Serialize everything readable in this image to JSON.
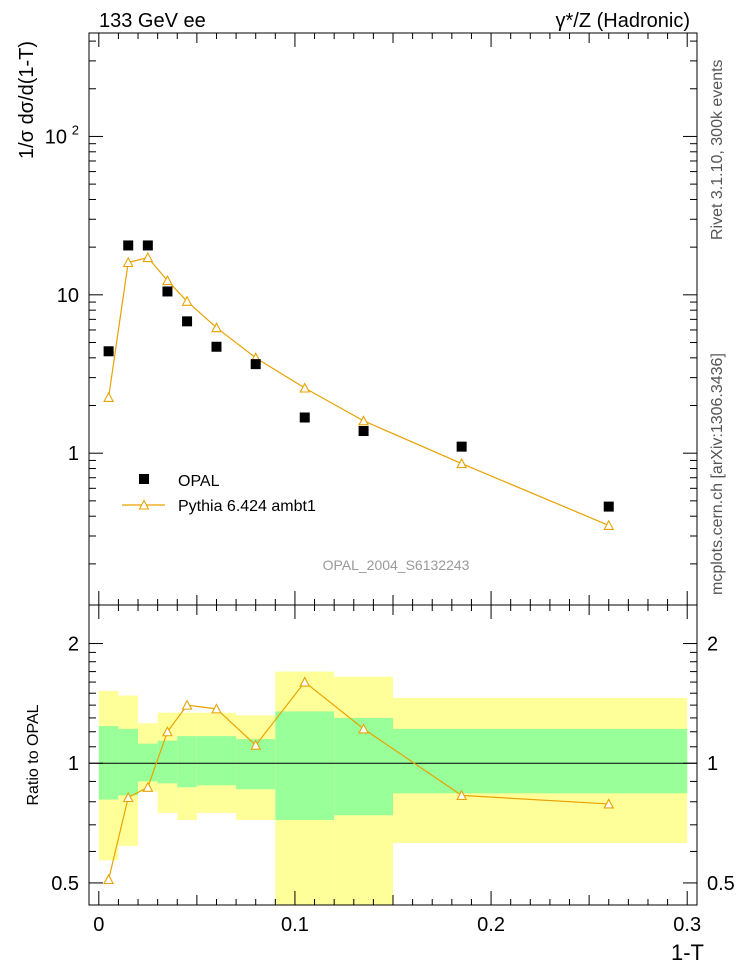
{
  "header": {
    "left_title": "133 GeV ee",
    "right_title": "γ*/Z (Hadronic)"
  },
  "side_labels": {
    "rivet": "Rivet 3.1.10,  300k events",
    "mcplots": "mcplots.cern.ch [arXiv:1306.3436]"
  },
  "analysis_id": "OPAL_2004_S6132243",
  "colors": {
    "data_marker": "#000000",
    "mc_line": "#e8a200",
    "band_inner": "#99ff99",
    "band_outer": "#ffff99",
    "ratio_ref_line": "#000000"
  },
  "chart_data": [
    {
      "type": "scatter",
      "panel": "main",
      "ylabel": "1/σ dσ/d(1-T)",
      "yscale": "log",
      "ylim": [
        0.11,
        450
      ],
      "xlim": [
        -0.005,
        0.305
      ],
      "ytick_labels": [
        "1",
        "10",
        "10^2"
      ],
      "legend_position": "lower-left",
      "series": [
        {
          "name": "OPAL",
          "marker": "filled-square",
          "x": [
            0.005,
            0.015,
            0.025,
            0.035,
            0.045,
            0.06,
            0.08,
            0.105,
            0.135,
            0.185,
            0.26
          ],
          "y": [
            4.4,
            20.5,
            20.5,
            10.5,
            6.8,
            4.7,
            3.65,
            1.68,
            1.38,
            1.1,
            0.46
          ]
        },
        {
          "name": "Pythia 6.424 ambt1",
          "marker": "open-triangle",
          "line": true,
          "x": [
            0.005,
            0.015,
            0.025,
            0.035,
            0.045,
            0.06,
            0.08,
            0.105,
            0.135,
            0.185,
            0.26
          ],
          "y": [
            2.25,
            16.0,
            17.2,
            12.3,
            9.1,
            6.2,
            4.0,
            2.58,
            1.6,
            0.86,
            0.35
          ]
        }
      ]
    },
    {
      "type": "line",
      "panel": "ratio",
      "xlabel": "1-T",
      "ylabel": "Ratio to OPAL",
      "yscale": "log",
      "ylim": [
        0.44,
        2.5
      ],
      "xlim": [
        -0.005,
        0.305
      ],
      "ytick_labels": [
        "0.5",
        "1",
        "2"
      ],
      "xtick_labels": [
        "0",
        "0.1",
        "0.2",
        "0.3"
      ],
      "reference_line": 1,
      "uncertainty_bands": {
        "bin_edges": [
          0.0,
          0.01,
          0.02,
          0.03,
          0.04,
          0.05,
          0.07,
          0.09,
          0.12,
          0.15,
          0.3
        ],
        "outer_low": [
          0.57,
          0.62,
          0.85,
          0.75,
          0.72,
          0.75,
          0.72,
          0.38,
          0.38,
          0.63
        ],
        "outer_high": [
          1.52,
          1.48,
          1.26,
          1.34,
          1.34,
          1.34,
          1.32,
          1.7,
          1.65,
          1.46
        ],
        "inner_low": [
          0.81,
          0.83,
          0.9,
          0.89,
          0.87,
          0.88,
          0.86,
          0.72,
          0.74,
          0.84
        ],
        "inner_high": [
          1.24,
          1.22,
          1.12,
          1.14,
          1.17,
          1.17,
          1.15,
          1.35,
          1.3,
          1.22
        ]
      },
      "series": [
        {
          "name": "Pythia 6.424 ambt1",
          "marker": "open-triangle",
          "x": [
            0.005,
            0.015,
            0.025,
            0.035,
            0.045,
            0.06,
            0.08,
            0.105,
            0.135,
            0.185,
            0.26
          ],
          "y": [
            0.51,
            0.82,
            0.87,
            1.2,
            1.4,
            1.37,
            1.11,
            1.6,
            1.22,
            0.83,
            0.79
          ]
        }
      ]
    }
  ]
}
